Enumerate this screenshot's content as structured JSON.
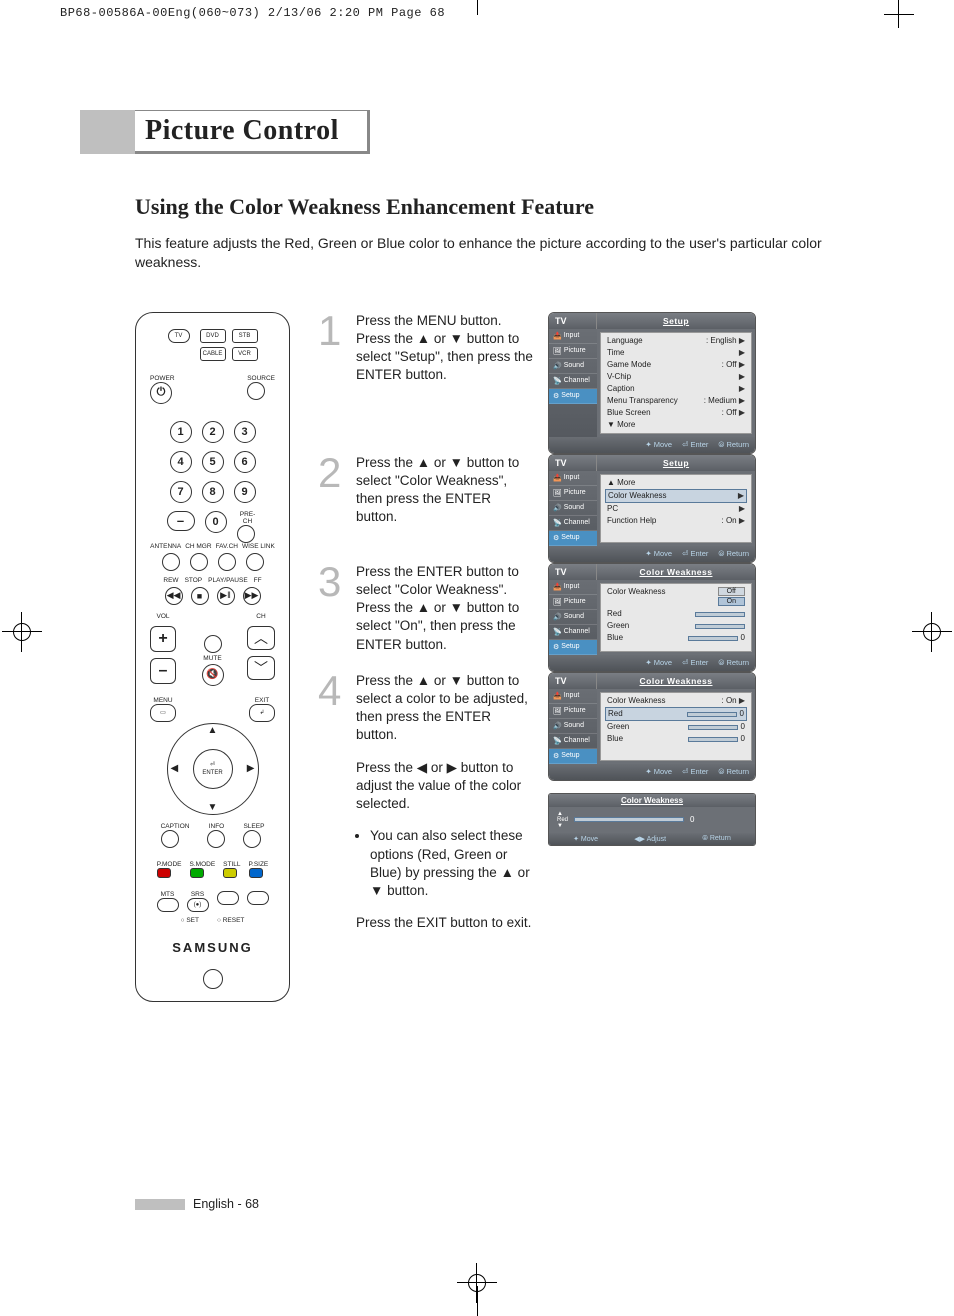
{
  "meta": {
    "header": "BP68-00586A-00Eng(060~073)  2/13/06  2:20 PM  Page 68"
  },
  "title": "Picture Control",
  "subheading": "Using the Color Weakness Enhancement Feature",
  "intro": "This feature adjusts the Red, Green or Blue color to enhance the picture according to the user's particular color weakness.",
  "remote": {
    "tv": "TV",
    "dvd": "DVD",
    "stb": "STB",
    "cable": "CABLE",
    "vcr": "VCR",
    "power": "POWER",
    "source": "SOURCE",
    "nums": [
      "1",
      "2",
      "3",
      "4",
      "5",
      "6",
      "7",
      "8",
      "9",
      "0"
    ],
    "prech": "PRE-CH",
    "row_labels": [
      "ANTENNA",
      "CH MGR",
      "FAV.CH",
      "WISE LINK"
    ],
    "transport": [
      "REW",
      "STOP",
      "PLAY/PAUSE",
      "FF"
    ],
    "vol": "VOL",
    "ch": "CH",
    "mute": "MUTE",
    "menu": "MENU",
    "exit": "EXIT",
    "enter": "ENTER",
    "caption": "CAPTION",
    "info": "INFO",
    "sleep": "SLEEP",
    "pmode": "P.MODE",
    "smode": "S.MODE",
    "still": "STILL",
    "psize": "P.SIZE",
    "mts": "MTS",
    "srs": "SRS",
    "set": "SET",
    "reset": "RESET",
    "brand": "SAMSUNG"
  },
  "steps": [
    {
      "num": "1",
      "text": "Press the MENU button. Press the ▲ or ▼ button to select \"Setup\", then press the ENTER button.",
      "osd": {
        "tv": "TV",
        "title": "Setup",
        "side": [
          "Input",
          "Picture",
          "Sound",
          "Channel",
          "Setup"
        ],
        "rows": [
          {
            "l": "Language",
            "r": ": English",
            "a": "▶"
          },
          {
            "l": "Time",
            "r": "",
            "a": "▶"
          },
          {
            "l": "Game Mode",
            "r": ": Off",
            "a": "▶"
          },
          {
            "l": "V-Chip",
            "r": "",
            "a": "▶"
          },
          {
            "l": "Caption",
            "r": "",
            "a": "▶"
          },
          {
            "l": "Menu Transparency",
            "r": ": Medium",
            "a": "▶"
          },
          {
            "l": "Blue Screen",
            "r": ": Off",
            "a": "▶"
          },
          {
            "l": "▼ More",
            "r": "",
            "a": ""
          }
        ],
        "foot": [
          "✦ Move",
          "⏎ Enter",
          "⦾ Return"
        ]
      }
    },
    {
      "num": "2",
      "text": "Press the ▲ or ▼ button to select \"Color Weakness\", then press the ENTER button.",
      "osd": {
        "tv": "TV",
        "title": "Setup",
        "side": [
          "Input",
          "Picture",
          "Sound",
          "Channel",
          "Setup"
        ],
        "rows": [
          {
            "l": "▲ More",
            "r": "",
            "a": ""
          },
          {
            "l": "Color Weakness",
            "r": "",
            "a": "▶",
            "hl": true
          },
          {
            "l": "PC",
            "r": "",
            "a": "▶"
          },
          {
            "l": "Function Help",
            "r": ": On",
            "a": "▶"
          }
        ],
        "foot": [
          "✦ Move",
          "⏎ Enter",
          "⦾ Return"
        ]
      }
    },
    {
      "num": "3",
      "text": "Press the ENTER button to select \"Color Weakness\". Press the ▲ or ▼ button to select \"On\", then press the ENTER button.",
      "osd": {
        "tv": "TV",
        "title": "Color Weakness",
        "side": [
          "Input",
          "Picture",
          "Sound",
          "Channel",
          "Setup"
        ],
        "cw_rows": [
          {
            "l": "Color Weakness",
            "opt_off": "Off",
            "opt_on": "On"
          },
          {
            "l": "Red",
            "slider": 0,
            "val": ""
          },
          {
            "l": "Green",
            "slider": 0,
            "val": ""
          },
          {
            "l": "Blue",
            "slider": 0,
            "val": "0"
          }
        ],
        "foot": [
          "✦ Move",
          "⏎ Enter",
          "⦾ Return"
        ]
      }
    },
    {
      "num": "4",
      "text": "Press the ▲ or ▼ button to select a color to be adjusted, then press the ENTER button.",
      "extra": "Press the ◀ or ▶ button to adjust the value of the color selected.",
      "bullet": "You can also select these options (Red, Green or Blue) by pressing the ▲ or ▼ button.",
      "exit": "Press the EXIT button to exit.",
      "osd": {
        "tv": "TV",
        "title": "Color Weakness",
        "side": [
          "Input",
          "Picture",
          "Sound",
          "Channel",
          "Setup"
        ],
        "cw_rows": [
          {
            "l": "Color Weakness",
            "r": ": On",
            "a": "▶"
          },
          {
            "l": "Red",
            "slider": 0,
            "val": "0",
            "hl": true
          },
          {
            "l": "Green",
            "slider": 0,
            "val": "0"
          },
          {
            "l": "Blue",
            "slider": 0,
            "val": "0"
          }
        ],
        "foot": [
          "✦ Move",
          "⏎ Enter",
          "⦾ Return"
        ]
      },
      "osd_small": {
        "title": "Color Weakness",
        "label": "Red",
        "val": "0",
        "foot": [
          "✦ Move",
          "◀▶ Adjust",
          "⦾ Return"
        ]
      }
    }
  ],
  "footer": {
    "lang": "English",
    "page": "68"
  },
  "colors": {
    "gray_bar": "#bfbfbf",
    "step_num": "#b8b8b8",
    "osd_bg": "#6c7076",
    "osd_panel": "#e8e8e8",
    "osd_hl": "#c8d4e0",
    "osd_accent": "#4a90c2",
    "osd_foot_text": "#b8d4e8"
  }
}
